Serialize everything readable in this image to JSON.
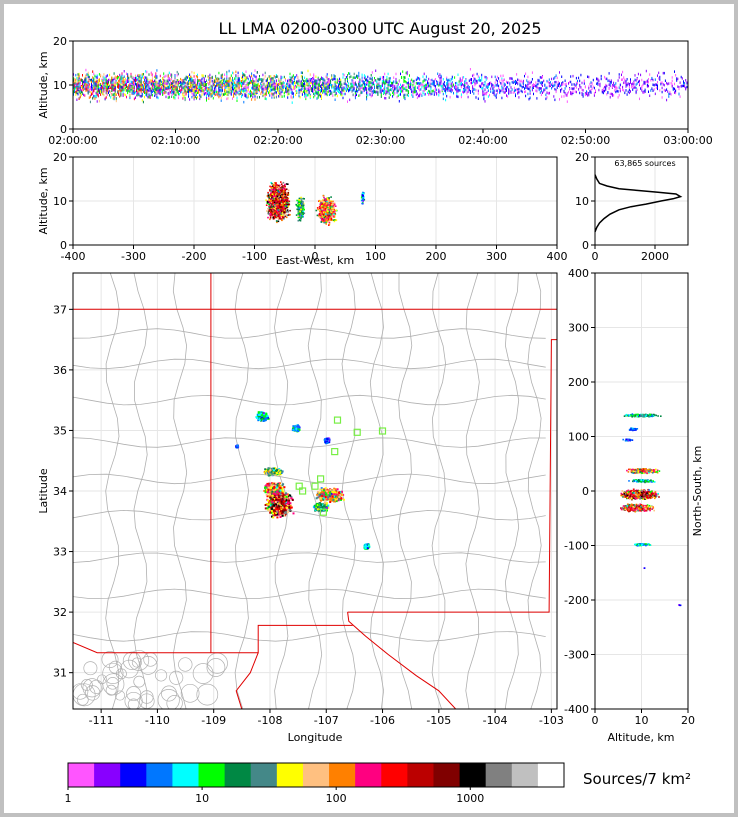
{
  "figure": {
    "title": "LL LMA 0200-0300 UTC August 20, 2025",
    "colorbar_label": "Sources/7 km²",
    "source_count": "63,865 sources"
  },
  "colors": {
    "colorbar": [
      "#ff55ff",
      "#8800ff",
      "#0000ff",
      "#0077ff",
      "#00ffff",
      "#00ff00",
      "#008844",
      "#448888",
      "#ffff00",
      "#ffc080",
      "#ff8000",
      "#ff0080",
      "#ff0000",
      "#bb0000",
      "#800000",
      "#000000",
      "#808080",
      "#c0c0c0",
      "#ffffff"
    ],
    "map_border": "#e00000",
    "county_lines": "#b0b0b0",
    "station": "#77ee44"
  },
  "colorbar": {
    "ticks": [
      {
        "label": "1",
        "value": 1
      },
      {
        "label": "10",
        "value": 10
      },
      {
        "label": "100",
        "value": 100
      },
      {
        "label": "1000",
        "value": 1000
      }
    ],
    "scale": "log",
    "range": [
      1,
      5000
    ]
  },
  "chart_data": [
    {
      "id": "time-height",
      "type": "scatter",
      "xlabel": "",
      "ylabel": "Altitude, km",
      "xticks": [
        "02:00:00",
        "02:10:00",
        "02:20:00",
        "02:30:00",
        "02:40:00",
        "02:50:00",
        "03:00:00"
      ],
      "xlim_minutes": [
        0,
        60
      ],
      "ylim": [
        0,
        20
      ],
      "yticks": [
        0,
        10,
        20
      ],
      "activity_profile": [
        [
          0,
          1
        ],
        [
          5,
          1
        ],
        [
          10,
          0.9
        ],
        [
          15,
          0.85
        ],
        [
          20,
          0.8
        ],
        [
          25,
          0.7
        ],
        [
          30,
          0.55
        ],
        [
          35,
          0.45
        ],
        [
          40,
          0.35
        ],
        [
          45,
          0.3
        ],
        [
          50,
          0.25
        ],
        [
          55,
          0.25
        ],
        [
          60,
          0.25
        ]
      ]
    },
    {
      "id": "ew-altitude",
      "type": "scatter",
      "xlabel": "East-West, km",
      "ylabel": "Altitude, km",
      "xlim": [
        -400,
        400
      ],
      "xticks": [
        -400,
        -300,
        -200,
        -100,
        0,
        100,
        200,
        300,
        400
      ],
      "ylim": [
        0,
        20
      ],
      "yticks": [
        0,
        10,
        20
      ]
    },
    {
      "id": "altitude-histogram",
      "type": "line",
      "xlim": [
        0,
        3100
      ],
      "xticks": [
        0,
        2000
      ],
      "ylim": [
        0,
        20
      ],
      "yticks": [
        0,
        10,
        20
      ],
      "points": [
        [
          0,
          3
        ],
        [
          60,
          4
        ],
        [
          150,
          5
        ],
        [
          300,
          6
        ],
        [
          500,
          7
        ],
        [
          800,
          8
        ],
        [
          1200,
          8.7
        ],
        [
          1700,
          9.3
        ],
        [
          2200,
          10
        ],
        [
          2600,
          10.5
        ],
        [
          2850,
          11
        ],
        [
          2700,
          11.6
        ],
        [
          2100,
          12
        ],
        [
          1400,
          12.4
        ],
        [
          800,
          12.8
        ],
        [
          400,
          13.4
        ],
        [
          150,
          14
        ],
        [
          60,
          15
        ],
        [
          0,
          16
        ]
      ]
    },
    {
      "id": "plan-view",
      "type": "scatter",
      "xlabel": "Longitude",
      "ylabel": "Latitude",
      "xlim": [
        -111.5,
        -102.9
      ],
      "xticks": [
        -111,
        -110,
        -109,
        -108,
        -107,
        -106,
        -105,
        -104,
        -103
      ],
      "ylim": [
        30.4,
        37.6
      ],
      "yticks": [
        31,
        32,
        33,
        34,
        35,
        36,
        37
      ],
      "clusters": [
        {
          "lon": -108.15,
          "lat": 35.25,
          "rx": 0.12,
          "ry": 0.09,
          "intensity": 0.35
        },
        {
          "lon": -107.55,
          "lat": 35.05,
          "rx": 0.08,
          "ry": 0.06,
          "intensity": 0.25
        },
        {
          "lon": -107.0,
          "lat": 34.85,
          "rx": 0.05,
          "ry": 0.05,
          "intensity": 0.2
        },
        {
          "lon": -107.95,
          "lat": 34.33,
          "rx": 0.18,
          "ry": 0.07,
          "intensity": 0.6
        },
        {
          "lon": -107.85,
          "lat": 33.8,
          "rx": 0.28,
          "ry": 0.27,
          "intensity": 1.0
        },
        {
          "lon": -107.95,
          "lat": 34.05,
          "rx": 0.2,
          "ry": 0.12,
          "intensity": 0.8
        },
        {
          "lon": -106.95,
          "lat": 33.95,
          "rx": 0.28,
          "ry": 0.13,
          "intensity": 0.75
        },
        {
          "lon": -107.1,
          "lat": 33.75,
          "rx": 0.15,
          "ry": 0.08,
          "intensity": 0.5
        },
        {
          "lon": -106.3,
          "lat": 33.1,
          "rx": 0.06,
          "ry": 0.05,
          "intensity": 0.3
        },
        {
          "lon": -108.6,
          "lat": 34.75,
          "rx": 0.02,
          "ry": 0.02,
          "intensity": 0.15
        }
      ],
      "stations": [
        [
          -106.8,
          35.17
        ],
        [
          -106.45,
          34.97
        ],
        [
          -106.0,
          34.99
        ],
        [
          -106.85,
          34.65
        ],
        [
          -107.1,
          34.2
        ],
        [
          -107.2,
          34.08
        ],
        [
          -107.42,
          34.0
        ],
        [
          -107.05,
          33.65
        ],
        [
          -107.48,
          34.08
        ]
      ]
    },
    {
      "id": "ns-altitude",
      "type": "scatter",
      "xlabel": "Altitude, km",
      "ylabel": "North-South, km",
      "xlim": [
        0,
        20
      ],
      "xticks": [
        0,
        10,
        20
      ],
      "ylim": [
        -400,
        400
      ],
      "yticks": [
        -400,
        -300,
        -200,
        -100,
        0,
        100,
        200,
        300,
        400
      ]
    }
  ]
}
